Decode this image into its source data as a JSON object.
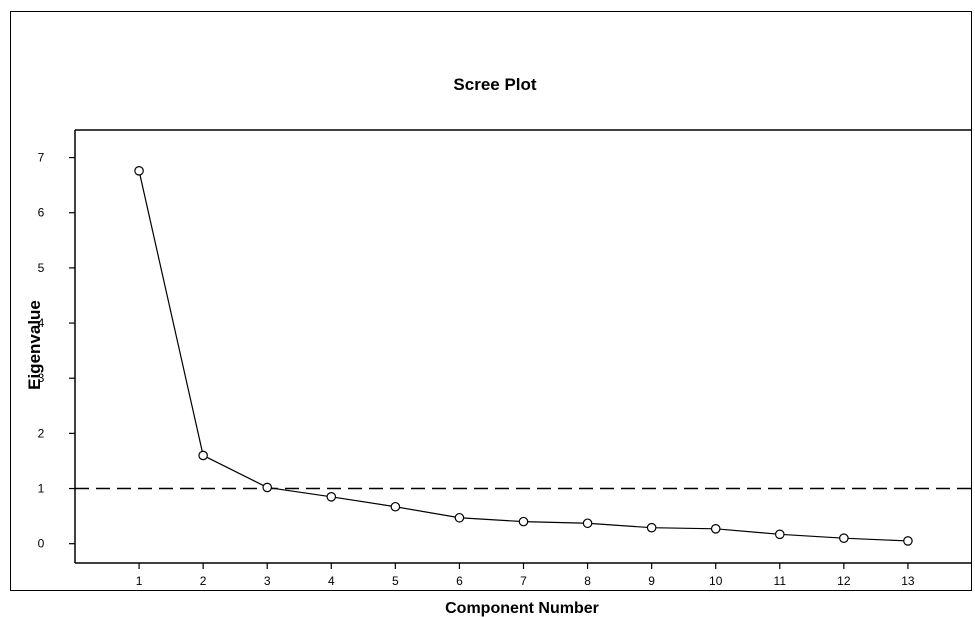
{
  "chart_data": {
    "type": "line",
    "title": "Scree Plot",
    "xlabel": "Component Number",
    "ylabel": "Eigenvalue",
    "x": [
      1,
      2,
      3,
      4,
      5,
      6,
      7,
      8,
      9,
      10,
      11,
      12,
      13
    ],
    "x_tick_labels": [
      "1",
      "2",
      "3",
      "4",
      "5",
      "6",
      "7",
      "8",
      "9",
      "10",
      "11",
      "12",
      "13"
    ],
    "y_tick_labels": [
      "0",
      "1",
      "2",
      "3",
      "4",
      "5",
      "6",
      "7"
    ],
    "series": [
      {
        "values": [
          6.76,
          1.6,
          1.02,
          0.85,
          0.67,
          0.47,
          0.4,
          0.37,
          0.29,
          0.27,
          0.17,
          0.1,
          0.05
        ]
      }
    ],
    "reference_line": {
      "y": 1,
      "style": "dashed"
    },
    "ylim": [
      -0.35,
      7.5
    ],
    "xlim": [
      0,
      14
    ],
    "grid": false,
    "marker": "open-circle",
    "colors": {
      "line": "#000000",
      "marker": "#000000",
      "background": "#ffffff"
    }
  }
}
